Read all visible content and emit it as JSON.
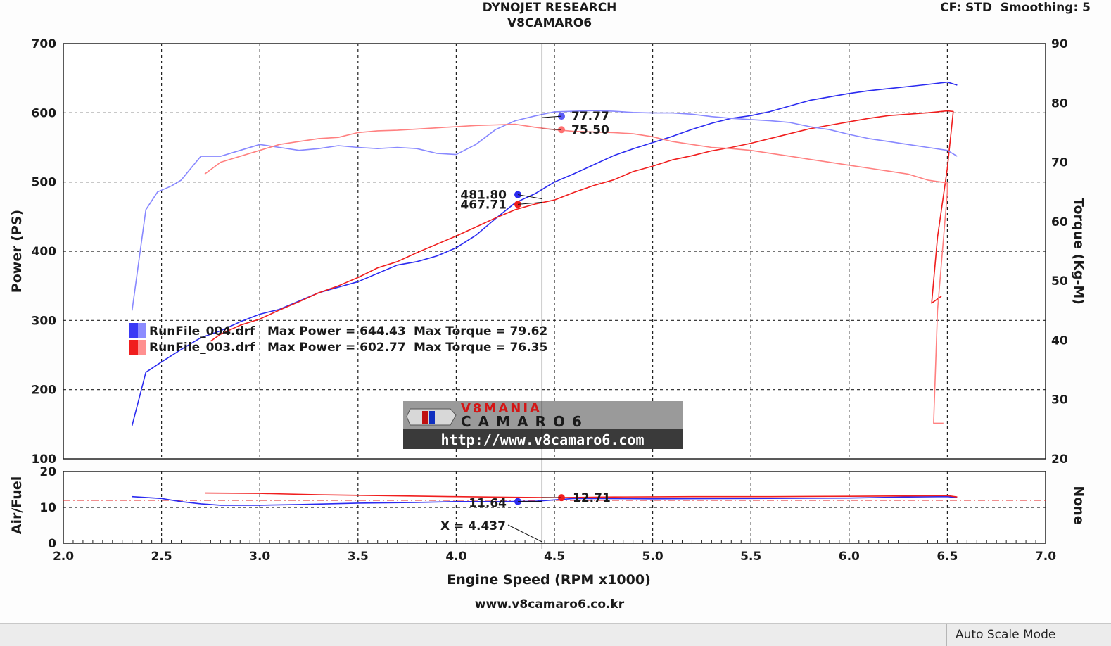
{
  "header": {
    "company": "DYNOJET RESEARCH",
    "subtitle": "V8CAMARO6",
    "settings": "CF: STD  Smoothing: 5"
  },
  "footer": {
    "site": "www.v8camaro6.co.kr"
  },
  "status_bar": {
    "mode": "Auto Scale Mode"
  },
  "watermark": {
    "logo_text_top": "V8MANIA",
    "logo_text_bottom": "CAMARO6",
    "url": "http://www.v8camaro6.com"
  },
  "legend": [
    {
      "file": "RunFile_004.drf",
      "power": "Max Power = 644.43",
      "torque": "Max Torque = 79.62",
      "color": "#2b2bf0"
    },
    {
      "file": "RunFile_003.drf",
      "power": "Max Power = 602.77",
      "torque": "Max Torque = 76.35",
      "color": "#f01e1e"
    }
  ],
  "cursor": {
    "label": "X = 4.437",
    "x": 4.437
  },
  "chart_data": [
    {
      "type": "line",
      "panel": "main",
      "xlabel": "Engine Speed (RPM x1000)",
      "ylabel": "Power (PS)",
      "y2label": "Torque (Kg-M)",
      "xlim": [
        2.0,
        7.0
      ],
      "ylim": [
        100,
        700
      ],
      "y2lim": [
        20,
        90
      ],
      "xticks": [
        "2.0",
        "2.5",
        "3.0",
        "3.5",
        "4.0",
        "4.5",
        "5.0",
        "5.5",
        "6.0",
        "6.5",
        "7.0"
      ],
      "yticks": [
        "100",
        "200",
        "300",
        "400",
        "500",
        "600",
        "700"
      ],
      "y2ticks": [
        "20",
        "30",
        "40",
        "50",
        "60",
        "70",
        "80",
        "90"
      ],
      "grid": true,
      "series": [
        {
          "name": "RunFile_004.drf",
          "metric": "power",
          "axis": "left",
          "color": "#2b2bf0",
          "x": [
            2.35,
            2.42,
            2.5,
            2.6,
            2.7,
            2.8,
            2.9,
            3.0,
            3.1,
            3.2,
            3.3,
            3.4,
            3.5,
            3.6,
            3.7,
            3.8,
            3.9,
            4.0,
            4.1,
            4.2,
            4.3,
            4.4,
            4.5,
            4.6,
            4.7,
            4.8,
            4.9,
            5.0,
            5.1,
            5.2,
            5.3,
            5.4,
            5.5,
            5.6,
            5.7,
            5.8,
            5.9,
            6.0,
            6.1,
            6.2,
            6.3,
            6.4,
            6.5,
            6.55
          ],
          "y": [
            148,
            225,
            240,
            258,
            275,
            285,
            298,
            309,
            316,
            328,
            340,
            348,
            356,
            368,
            380,
            385,
            393,
            405,
            423,
            447,
            470,
            483,
            500,
            512,
            525,
            538,
            548,
            557,
            566,
            576,
            585,
            592,
            596,
            602,
            610,
            618,
            623,
            628,
            632,
            635,
            638,
            641,
            644.4,
            640
          ]
        },
        {
          "name": "RunFile_003.drf",
          "metric": "power",
          "axis": "left",
          "color": "#f01e1e",
          "x": [
            2.75,
            2.8,
            2.9,
            3.0,
            3.1,
            3.2,
            3.3,
            3.4,
            3.5,
            3.6,
            3.7,
            3.8,
            3.9,
            4.0,
            4.1,
            4.2,
            4.3,
            4.4,
            4.5,
            4.6,
            4.7,
            4.8,
            4.9,
            5.0,
            5.1,
            5.2,
            5.3,
            5.4,
            5.5,
            5.6,
            5.7,
            5.8,
            5.9,
            6.0,
            6.1,
            6.2,
            6.3,
            6.4,
            6.5,
            6.53,
            6.5,
            6.45,
            6.42,
            6.47
          ],
          "y": [
            270,
            280,
            293,
            302,
            315,
            327,
            340,
            350,
            362,
            376,
            385,
            398,
            410,
            422,
            435,
            448,
            460,
            468,
            474,
            485,
            495,
            503,
            515,
            523,
            532,
            538,
            545,
            550,
            556,
            563,
            570,
            577,
            582,
            587,
            592,
            596,
            598,
            600,
            602.8,
            602,
            520,
            420,
            325,
            335
          ]
        },
        {
          "name": "RunFile_004.drf",
          "metric": "torque",
          "axis": "right",
          "color": "#8888ff",
          "x": [
            2.35,
            2.42,
            2.48,
            2.55,
            2.6,
            2.7,
            2.8,
            2.9,
            3.0,
            3.1,
            3.2,
            3.3,
            3.4,
            3.5,
            3.6,
            3.7,
            3.8,
            3.9,
            4.0,
            4.1,
            4.2,
            4.3,
            4.4,
            4.5,
            4.6,
            4.7,
            4.8,
            4.9,
            5.0,
            5.1,
            5.2,
            5.3,
            5.4,
            5.5,
            5.6,
            5.7,
            5.8,
            5.9,
            6.0,
            6.1,
            6.2,
            6.3,
            6.4,
            6.5,
            6.55
          ],
          "y": [
            45,
            62,
            65,
            66,
            67,
            71,
            71,
            72,
            73,
            72.5,
            72,
            72.3,
            72.8,
            72.5,
            72.3,
            72.5,
            72.3,
            71.5,
            71.3,
            73,
            75.5,
            77,
            77.8,
            78.5,
            78.6,
            78.7,
            78.6,
            78.4,
            78.3,
            78.3,
            78.1,
            77.7,
            77.4,
            77.2,
            77,
            76.7,
            76,
            75.5,
            74.7,
            74,
            73.5,
            73,
            72.5,
            72,
            71
          ]
        },
        {
          "name": "RunFile_003.drf",
          "metric": "torque",
          "axis": "right",
          "color": "#ff8080",
          "x": [
            2.72,
            2.8,
            2.9,
            3.0,
            3.1,
            3.2,
            3.3,
            3.4,
            3.5,
            3.6,
            3.7,
            3.8,
            3.9,
            4.0,
            4.1,
            4.2,
            4.3,
            4.4,
            4.5,
            4.6,
            4.7,
            4.8,
            4.9,
            5.0,
            5.1,
            5.2,
            5.3,
            5.4,
            5.5,
            5.6,
            5.7,
            5.8,
            5.9,
            6.0,
            6.1,
            6.2,
            6.3,
            6.4,
            6.5,
            6.5,
            6.45,
            6.43,
            6.48
          ],
          "y": [
            68,
            70,
            71,
            72,
            73,
            73.5,
            74,
            74.2,
            75,
            75.3,
            75.4,
            75.6,
            75.8,
            76,
            76.2,
            76.3,
            76.4,
            75.9,
            75.5,
            75.2,
            75.1,
            75,
            74.8,
            74.3,
            73.5,
            73,
            72.5,
            72.3,
            72,
            71.5,
            71,
            70.5,
            70,
            69.5,
            69,
            68.5,
            68,
            67,
            66.5,
            65,
            45,
            26,
            26
          ]
        }
      ],
      "cursor_values": {
        "power": [
          "481.80",
          "467.71"
        ],
        "torque": [
          "77.77",
          "75.50"
        ]
      }
    },
    {
      "type": "line",
      "panel": "air_fuel",
      "ylabel": "Air/Fuel",
      "y2label": "None",
      "xlim": [
        2.0,
        7.0
      ],
      "ylim": [
        0,
        20
      ],
      "yticks": [
        "0",
        "10",
        "20"
      ],
      "reference_line": 12,
      "series": [
        {
          "name": "RunFile_004.drf",
          "color": "#2b2bf0",
          "x": [
            2.35,
            2.5,
            2.6,
            2.7,
            2.8,
            3.0,
            3.2,
            3.5,
            3.8,
            4.0,
            4.2,
            4.4,
            4.6,
            5.0,
            5.5,
            6.0,
            6.3,
            6.5,
            6.55
          ],
          "y": [
            13,
            12.5,
            11.6,
            11,
            10.6,
            10.6,
            10.8,
            11.2,
            11.4,
            11.6,
            11.6,
            11.7,
            12.5,
            12.4,
            12.5,
            12.6,
            12.9,
            13,
            12.7
          ]
        },
        {
          "name": "RunFile_003.drf",
          "color": "#f01e1e",
          "x": [
            2.72,
            3.0,
            3.3,
            3.6,
            4.0,
            4.3,
            4.5,
            4.8,
            5.2,
            5.6,
            6.0,
            6.3,
            6.5,
            6.55
          ],
          "y": [
            14,
            13.9,
            13.5,
            13.3,
            13,
            12.8,
            12.7,
            12.9,
            13,
            13,
            13.1,
            13.2,
            13.3,
            12.9
          ]
        }
      ],
      "cursor_values": [
        "11.64",
        "12.71"
      ]
    }
  ]
}
